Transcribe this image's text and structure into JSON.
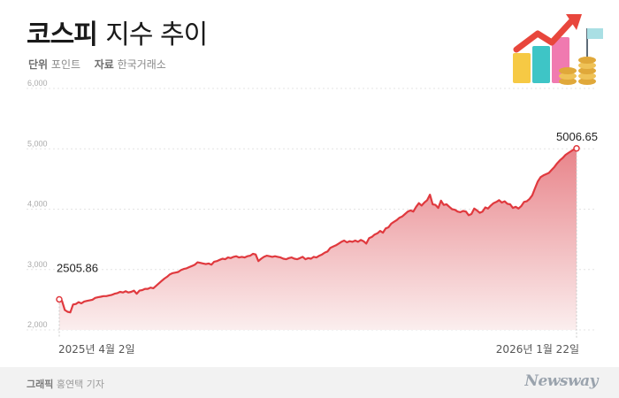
{
  "header": {
    "title_bold": "코스피",
    "title_rest": "지수 추이",
    "unit_label": "단위",
    "unit_value": "포인트",
    "source_label": "자료",
    "source_value": "한국거래소"
  },
  "footer": {
    "credit_label": "그래픽",
    "credit_name": "홍연택 기자",
    "brand": "Newsway"
  },
  "colors": {
    "line": "#e0393e",
    "fill_top": "#e8848a",
    "fill_bottom": "#fbeeee"
  },
  "chart_data": {
    "type": "area",
    "title": "코스피 지수 추이",
    "unit": "포인트",
    "ylim": [
      2000,
      6000
    ],
    "yticks": [
      "2,000",
      "3,000",
      "4,000",
      "5,000",
      "6,000"
    ],
    "x_start_label": "2025년 4월 2일",
    "x_end_label": "2026년 1월 22일",
    "start_value_label": "2505.86",
    "end_value_label": "5006.65",
    "series": [
      {
        "values": [
          2506,
          2480,
          2330,
          2300,
          2290,
          2420,
          2430,
          2460,
          2440,
          2470,
          2480,
          2490,
          2500,
          2530,
          2540,
          2550,
          2560,
          2560,
          2570,
          2580,
          2600,
          2610,
          2630,
          2620,
          2640,
          2620,
          2630,
          2650,
          2600,
          2650,
          2660,
          2680,
          2680,
          2700,
          2690,
          2730,
          2770,
          2810,
          2850,
          2880,
          2920,
          2940,
          2950,
          2960,
          2990,
          3010,
          3020,
          3040,
          3060,
          3080,
          3120,
          3110,
          3100,
          3090,
          3100,
          3080,
          3130,
          3140,
          3160,
          3180,
          3170,
          3200,
          3190,
          3210,
          3220,
          3200,
          3210,
          3200,
          3220,
          3230,
          3260,
          3250,
          3140,
          3180,
          3210,
          3230,
          3220,
          3210,
          3220,
          3210,
          3200,
          3180,
          3170,
          3190,
          3200,
          3180,
          3170,
          3190,
          3210,
          3170,
          3190,
          3180,
          3210,
          3200,
          3230,
          3250,
          3280,
          3300,
          3360,
          3380,
          3400,
          3430,
          3460,
          3480,
          3450,
          3470,
          3460,
          3480,
          3460,
          3490,
          3470,
          3430,
          3520,
          3540,
          3580,
          3600,
          3640,
          3610,
          3680,
          3700,
          3760,
          3790,
          3820,
          3860,
          3880,
          3920,
          3960,
          3980,
          3960,
          4040,
          4100,
          4060,
          4110,
          4150,
          4240,
          4080,
          4070,
          4020,
          4140,
          4070,
          4080,
          4040,
          4000,
          3990,
          3960,
          3950,
          3970,
          3960,
          3900,
          3920,
          4010,
          3980,
          3940,
          3960,
          4030,
          4010,
          4060,
          4100,
          4120,
          4150,
          4110,
          4130,
          4090,
          4080,
          4020,
          4040,
          4010,
          4050,
          4120,
          4130,
          4170,
          4230,
          4350,
          4460,
          4530,
          4560,
          4580,
          4600,
          4650,
          4700,
          4760,
          4810,
          4850,
          4900,
          4930,
          4960,
          4990,
          5006.65
        ]
      }
    ]
  }
}
